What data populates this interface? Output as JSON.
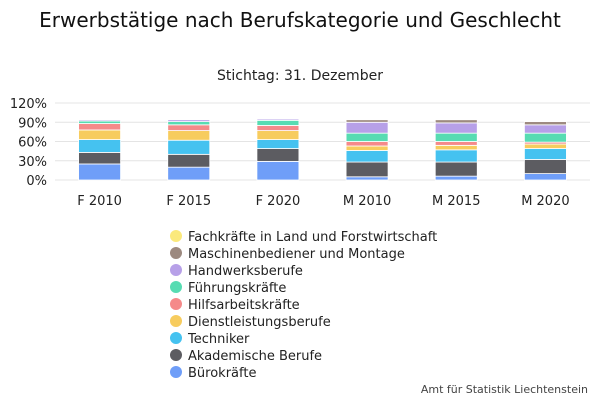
{
  "chart_data": {
    "type": "bar",
    "stacked": true,
    "percent": true,
    "title": "Erwerbstätige nach Berufskategorie und Geschlecht",
    "subtitle": "Stichtag: 31. Dezember",
    "credit": "Amt für Statistik Liechtenstein",
    "categories": [
      "F 2010",
      "F 2015",
      "F 2020",
      "M 2010",
      "M 2015",
      "M 2020"
    ],
    "yticks": [
      "0%",
      "30%",
      "60%",
      "90%",
      "120%"
    ],
    "ylim": [
      0,
      120
    ],
    "grid": true,
    "legend_position": "bottom",
    "series": [
      {
        "name": "Bürokräfte",
        "color": "#6f9ef8",
        "values": [
          25,
          20,
          29,
          5,
          6,
          10
        ]
      },
      {
        "name": "Akademische Berufe",
        "color": "#5c5c61",
        "values": [
          18,
          20,
          20,
          23,
          22,
          22
        ]
      },
      {
        "name": "Techniker",
        "color": "#45c2f0",
        "values": [
          20,
          22,
          14,
          18,
          19,
          17
        ]
      },
      {
        "name": "Dienstleistungsberufe",
        "color": "#f7cc5e",
        "values": [
          15,
          15,
          14,
          7,
          7,
          7
        ]
      },
      {
        "name": "Hilfsarbeitskräfte",
        "color": "#f58a8a",
        "values": [
          10,
          9,
          8,
          7,
          6,
          3
        ]
      },
      {
        "name": "Führungskräfte",
        "color": "#57dcb2",
        "values": [
          4,
          5,
          8,
          13,
          13,
          14
        ]
      },
      {
        "name": "Handwerksberufe",
        "color": "#b7a0e8",
        "values": [
          2,
          3,
          2,
          17,
          16,
          13
        ]
      },
      {
        "name": "Maschinenbediener und Montage",
        "color": "#9d8a80",
        "values": [
          1,
          1,
          0,
          4,
          5,
          5
        ]
      },
      {
        "name": "Fachkräfte in Land und Forstwirtschaft",
        "color": "#fbe97c",
        "values": [
          0,
          0,
          0,
          1,
          1,
          1
        ]
      }
    ]
  }
}
